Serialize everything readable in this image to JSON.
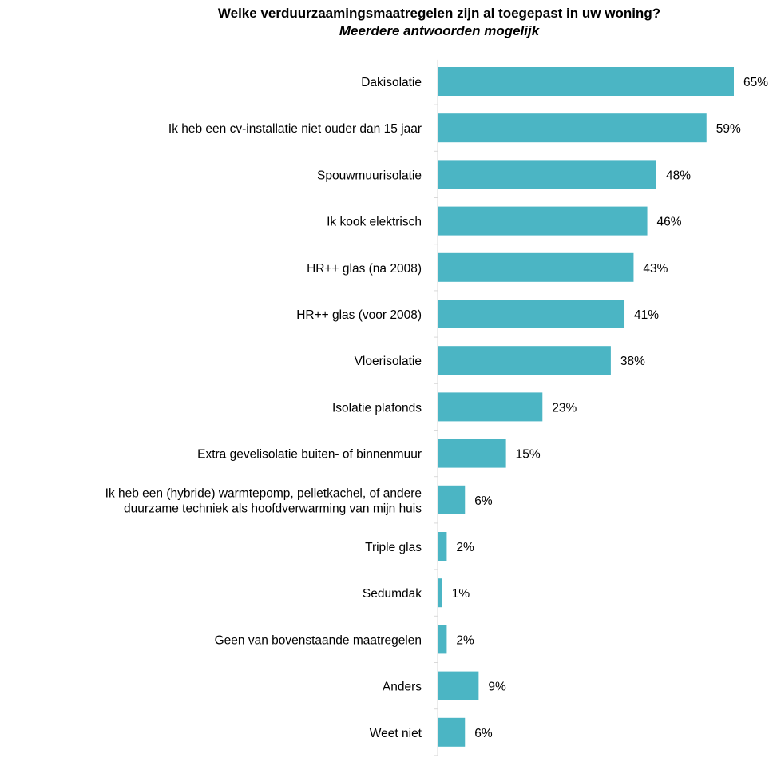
{
  "chart_data": {
    "type": "bar",
    "orientation": "horizontal",
    "title": "Welke verduurzaamingsmaatregelen zijn al toegepast in uw woning?",
    "subtitle": "Meerdere antwoorden mogelijk",
    "categories": [
      [
        "Dakisolatie"
      ],
      [
        "Ik heb een cv-installatie niet ouder dan 15 jaar"
      ],
      [
        "Spouwmuurisolatie"
      ],
      [
        "Ik kook elektrisch"
      ],
      [
        "HR++ glas (na 2008)"
      ],
      [
        "HR++ glas (voor 2008)"
      ],
      [
        "Vloerisolatie"
      ],
      [
        "Isolatie plafonds"
      ],
      [
        "Extra gevelisolatie buiten- of binnenmuur"
      ],
      [
        "Ik heb een (hybride) warmtepomp, pelletkachel, of andere",
        "duurzame techniek als hoofdverwarming van mijn huis"
      ],
      [
        "Triple glas"
      ],
      [
        "Sedumdak"
      ],
      [
        "Geen van bovenstaande maatregelen"
      ],
      [
        "Anders"
      ],
      [
        "Weet niet"
      ]
    ],
    "values": [
      65,
      59,
      48,
      46,
      43,
      41,
      38,
      23,
      15,
      6,
      2,
      1,
      2,
      9,
      6
    ],
    "value_labels": [
      "65%",
      "59%",
      "48%",
      "46%",
      "43%",
      "41%",
      "38%",
      "23%",
      "15%",
      "6%",
      "2%",
      "1%",
      "2%",
      "9%",
      "6%"
    ],
    "unit": "%",
    "xlim": [
      0,
      65
    ],
    "bar_color": "#4bb5c4",
    "axis_color": "#d9d9d9",
    "grid": false,
    "legend": "none"
  }
}
